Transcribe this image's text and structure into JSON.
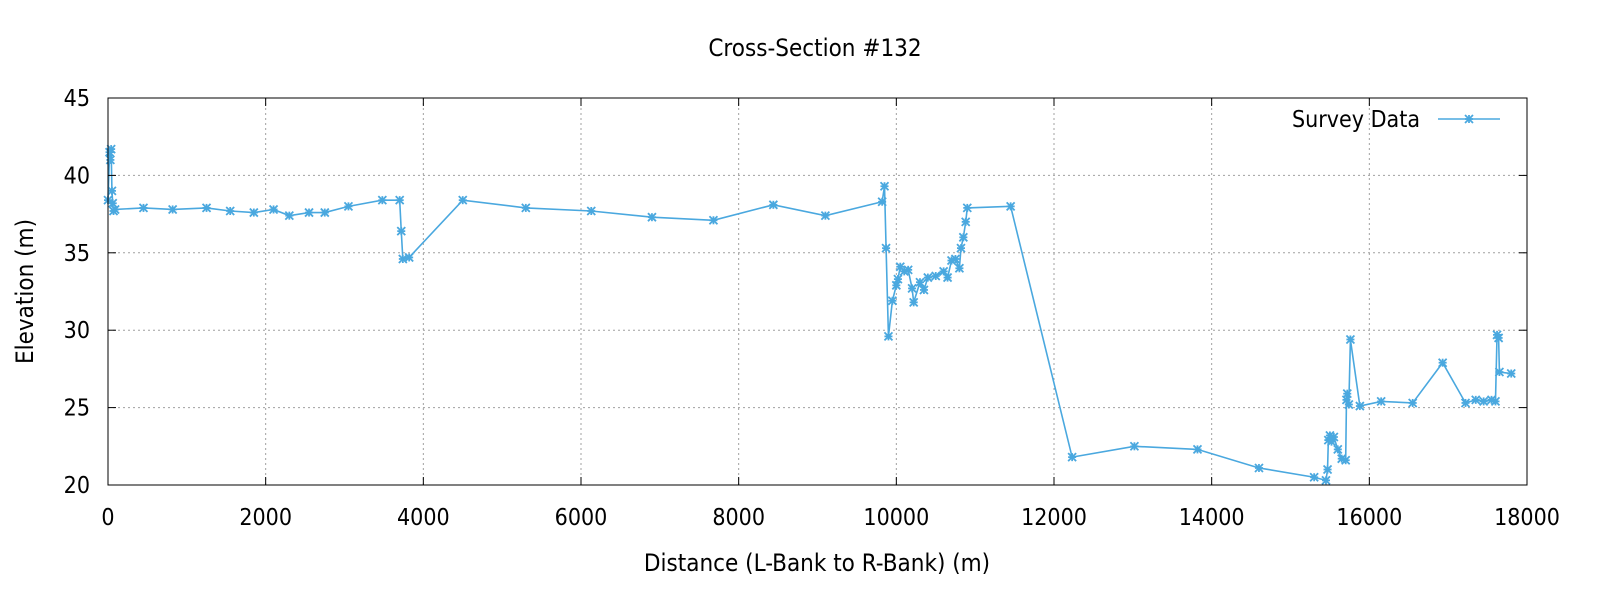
{
  "chart_data": {
    "type": "line",
    "title": "Cross-Section #132",
    "xlabel": "Distance (L-Bank to R-Bank) (m)",
    "ylabel": "Elevation (m)",
    "xlim": [
      0,
      18000
    ],
    "ylim": [
      20,
      45
    ],
    "xticks": [
      0,
      2000,
      4000,
      6000,
      8000,
      10000,
      12000,
      14000,
      16000,
      18000
    ],
    "yticks": [
      20,
      25,
      30,
      35,
      40,
      45
    ],
    "grid": true,
    "legend_position": "top-right",
    "series": [
      {
        "name": "Survey Data",
        "color": "#4aa8df",
        "marker": "asterisk",
        "points": [
          [
            0,
            38.4
          ],
          [
            20,
            41.5
          ],
          [
            30,
            41.0
          ],
          [
            40,
            41.7
          ],
          [
            50,
            39.0
          ],
          [
            60,
            38.2
          ],
          [
            70,
            37.7
          ],
          [
            90,
            37.8
          ],
          [
            450,
            37.9
          ],
          [
            820,
            37.8
          ],
          [
            1250,
            37.9
          ],
          [
            1550,
            37.7
          ],
          [
            1850,
            37.6
          ],
          [
            2100,
            37.8
          ],
          [
            2300,
            37.4
          ],
          [
            2550,
            37.6
          ],
          [
            2750,
            37.6
          ],
          [
            3050,
            38.0
          ],
          [
            3480,
            38.4
          ],
          [
            3700,
            38.4
          ],
          [
            3720,
            36.4
          ],
          [
            3740,
            34.6
          ],
          [
            3820,
            34.7
          ],
          [
            4500,
            38.4
          ],
          [
            5300,
            37.9
          ],
          [
            6130,
            37.7
          ],
          [
            6900,
            37.3
          ],
          [
            7680,
            37.1
          ],
          [
            8440,
            38.1
          ],
          [
            9100,
            37.4
          ],
          [
            9820,
            38.3
          ],
          [
            9850,
            39.3
          ],
          [
            9870,
            35.3
          ],
          [
            9900,
            29.6
          ],
          [
            9950,
            31.9
          ],
          [
            10000,
            32.9
          ],
          [
            10020,
            33.3
          ],
          [
            10050,
            34.1
          ],
          [
            10100,
            33.8
          ],
          [
            10150,
            33.9
          ],
          [
            10200,
            32.7
          ],
          [
            10220,
            31.8
          ],
          [
            10300,
            33.1
          ],
          [
            10350,
            32.6
          ],
          [
            10400,
            33.4
          ],
          [
            10500,
            33.5
          ],
          [
            10600,
            33.8
          ],
          [
            10650,
            33.4
          ],
          [
            10700,
            34.5
          ],
          [
            10750,
            34.6
          ],
          [
            10800,
            34.0
          ],
          [
            10820,
            35.3
          ],
          [
            10850,
            36.0
          ],
          [
            10880,
            37.0
          ],
          [
            10900,
            37.9
          ],
          [
            11450,
            38.0
          ],
          [
            12230,
            21.8
          ],
          [
            13020,
            22.5
          ],
          [
            13820,
            22.3
          ],
          [
            14600,
            21.1
          ],
          [
            15300,
            20.5
          ],
          [
            15450,
            20.3
          ],
          [
            15470,
            21.0
          ],
          [
            15480,
            22.9
          ],
          [
            15500,
            23.2
          ],
          [
            15520,
            22.8
          ],
          [
            15550,
            23.1
          ],
          [
            15600,
            22.3
          ],
          [
            15650,
            21.7
          ],
          [
            15700,
            21.6
          ],
          [
            15710,
            25.5
          ],
          [
            15720,
            25.9
          ],
          [
            15740,
            25.2
          ],
          [
            15760,
            29.4
          ],
          [
            15880,
            25.1
          ],
          [
            16150,
            25.4
          ],
          [
            16550,
            25.3
          ],
          [
            16930,
            27.9
          ],
          [
            17220,
            25.3
          ],
          [
            17350,
            25.5
          ],
          [
            17450,
            25.4
          ],
          [
            17550,
            25.5
          ],
          [
            17600,
            25.4
          ],
          [
            17620,
            29.7
          ],
          [
            17640,
            29.5
          ],
          [
            17650,
            27.3
          ],
          [
            17800,
            27.2
          ]
        ]
      }
    ]
  }
}
